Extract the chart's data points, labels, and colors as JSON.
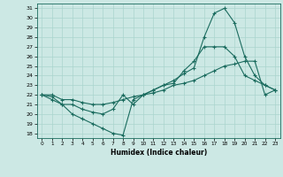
{
  "title": "",
  "xlabel": "Humidex (Indice chaleur)",
  "background_color": "#cce8e4",
  "line_color": "#1a6b5e",
  "grid_color": "#aad4ce",
  "xlim": [
    -0.5,
    23.5
  ],
  "ylim": [
    17.5,
    31.5
  ],
  "xticks": [
    0,
    1,
    2,
    3,
    4,
    5,
    6,
    7,
    8,
    9,
    10,
    11,
    12,
    13,
    14,
    15,
    16,
    17,
    18,
    19,
    20,
    21,
    22,
    23
  ],
  "yticks": [
    18,
    19,
    20,
    21,
    22,
    23,
    24,
    25,
    26,
    27,
    28,
    29,
    30,
    31
  ],
  "line1_x": [
    0,
    1,
    2,
    3,
    4,
    5,
    6,
    7,
    8,
    9,
    10,
    11,
    12,
    13,
    14,
    15,
    16,
    17,
    18,
    19,
    20,
    21,
    22,
    23
  ],
  "line1_y": [
    22,
    21.5,
    21,
    20,
    19.5,
    19,
    18.5,
    18,
    17.8,
    21.5,
    22,
    22.5,
    23,
    23.2,
    24.5,
    25.5,
    27,
    27,
    27,
    26,
    24,
    23.5,
    23,
    22.5
  ],
  "line2_x": [
    0,
    1,
    2,
    3,
    4,
    5,
    6,
    7,
    8,
    9,
    10,
    11,
    12,
    13,
    14,
    15,
    16,
    17,
    18,
    19,
    20,
    21,
    22,
    23
  ],
  "line2_y": [
    22,
    21.8,
    21,
    21,
    20.5,
    20.2,
    20,
    20.5,
    22,
    21,
    22,
    22.5,
    23,
    23.5,
    24.2,
    24.8,
    28,
    30.5,
    31,
    29.5,
    26,
    24,
    23,
    22.5
  ],
  "line3_x": [
    0,
    1,
    2,
    3,
    4,
    5,
    6,
    7,
    8,
    9,
    10,
    11,
    12,
    13,
    14,
    15,
    16,
    17,
    18,
    19,
    20,
    21,
    22,
    23
  ],
  "line3_y": [
    22,
    22,
    21.5,
    21.5,
    21.2,
    21,
    21,
    21.2,
    21.5,
    21.8,
    22,
    22.2,
    22.5,
    23,
    23.2,
    23.5,
    24,
    24.5,
    25,
    25.2,
    25.5,
    25.5,
    22,
    22.5
  ]
}
